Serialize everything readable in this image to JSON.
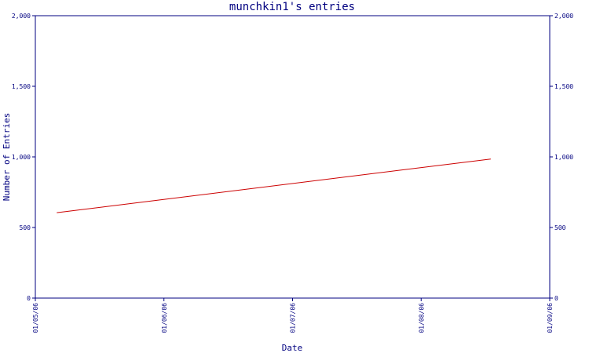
{
  "chart_data": {
    "type": "line",
    "title": "munchkin1's entries",
    "xlabel": "Date",
    "ylabel": "Number of Entries",
    "ylim": [
      0,
      2000
    ],
    "y_ticks": [
      "0",
      "500",
      "1,000",
      "1,500",
      "2,000"
    ],
    "y_tick_values": [
      0,
      500,
      1000,
      1500,
      2000
    ],
    "x_ticks": [
      "01/05/06",
      "01/06/06",
      "01/07/06",
      "01/08/06",
      "01/09/06"
    ],
    "xlim": [
      "2006-01-05",
      "2006-01-09"
    ],
    "series": [
      {
        "x": [
          "2006-01-05T04:00",
          "2006-01-08T13:00"
        ],
        "y": [
          605,
          985
        ],
        "color": "#cc0000"
      }
    ],
    "axis_color": "#000080",
    "grid": false,
    "secondary_y_axis": true
  }
}
